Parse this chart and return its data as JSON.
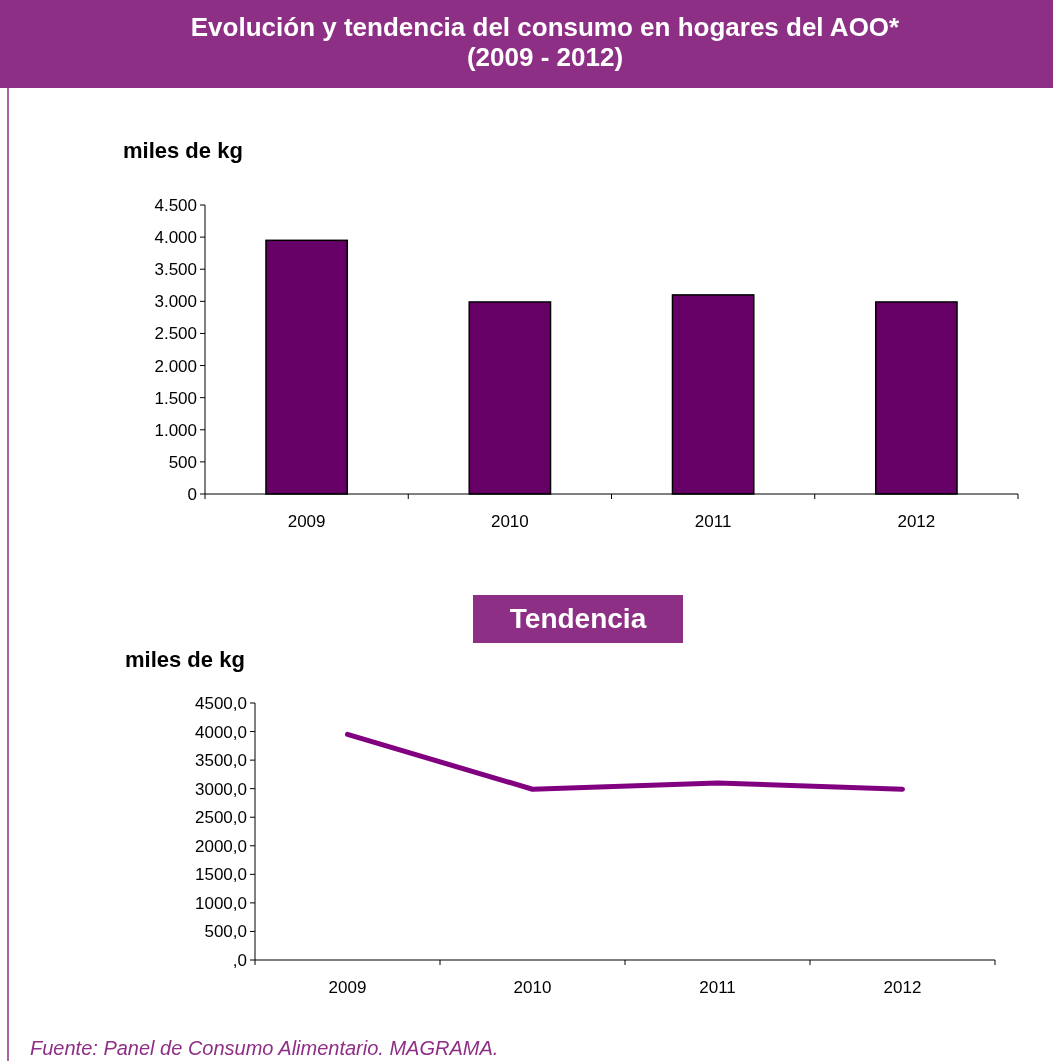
{
  "chart_data": [
    {
      "type": "bar",
      "title": "Evolución y tendencia del consumo en hogares del AOO*\n(2009 - 2012)",
      "ylabel": "miles de kg",
      "categories": [
        "2009",
        "2010",
        "2011",
        "2012"
      ],
      "values": [
        3950,
        2990,
        3100,
        2990
      ],
      "color": "#660066",
      "ylim": [
        0,
        4500
      ],
      "yticks": [
        0,
        500,
        {
          "value": 1000,
          "label": "1.000"
        },
        {
          "value": 1500,
          "label": "1.500"
        },
        {
          "value": 2000,
          "label": "2.000"
        },
        {
          "value": 2500,
          "label": "2.500"
        },
        {
          "value": 3000,
          "label": "3.000"
        },
        {
          "value": 3500,
          "label": "3.500"
        },
        {
          "value": 4000,
          "label": "4.000"
        },
        {
          "value": 4500,
          "label": "4.500"
        }
      ],
      "grid": false
    },
    {
      "type": "line",
      "title": "Tendencia",
      "ylabel": "miles de kg",
      "categories": [
        "2009",
        "2010",
        "2011",
        "2012"
      ],
      "values": [
        3950,
        2990,
        3100,
        2990
      ],
      "color": "#800080",
      "marker": "none",
      "line_style": "solid",
      "ylim": [
        0,
        4500
      ],
      "yticks": [
        {
          "value": 0,
          "label": ",0"
        },
        {
          "value": 500,
          "label": "500,0"
        },
        {
          "value": 1000,
          "label": "1000,0"
        },
        {
          "value": 1500,
          "label": "1500,0"
        },
        {
          "value": 2000,
          "label": "2000,0"
        },
        {
          "value": 2500,
          "label": "2500,0"
        },
        {
          "value": 3000,
          "label": "3000,0"
        },
        {
          "value": 3500,
          "label": "3500,0"
        },
        {
          "value": 4000,
          "label": "4000,0"
        },
        {
          "value": 4500,
          "label": "4500,0"
        }
      ],
      "grid": false,
      "annotations": [
        "Fuente: Panel de Consumo Alimentario. MAGRAMA."
      ]
    }
  ]
}
